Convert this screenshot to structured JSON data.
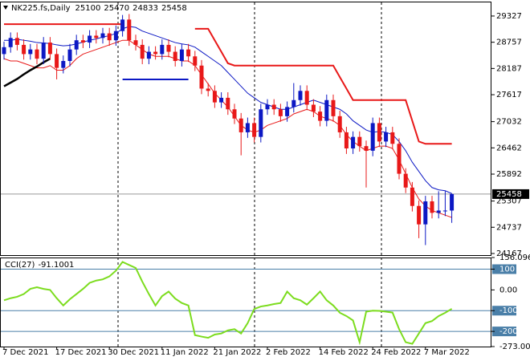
{
  "chart_data": [
    {
      "type": "candlestick",
      "title": "NK225.fs,Daily",
      "categories": [
        "7 Dec 2021",
        null,
        null,
        null,
        null,
        null,
        null,
        null,
        "17 Dec 2021",
        null,
        null,
        null,
        null,
        null,
        null,
        null,
        "30 Dec 2021",
        null,
        null,
        null,
        null,
        null,
        null,
        null,
        "11 Jan 2022",
        null,
        null,
        null,
        null,
        null,
        null,
        null,
        "21 Jan 2022",
        null,
        null,
        null,
        null,
        null,
        null,
        null,
        "2 Feb 2022",
        null,
        null,
        null,
        null,
        null,
        null,
        null,
        "14 Feb 2022",
        null,
        null,
        null,
        null,
        null,
        null,
        null,
        "24 Feb 2022",
        null,
        null,
        null,
        null,
        null,
        null,
        null,
        "7 Mar 2022",
        null,
        null,
        null,
        null
      ],
      "open": [
        28500,
        28650,
        28850,
        28700,
        28500,
        28600,
        28400,
        28750,
        28500,
        28200,
        28350,
        28600,
        28800,
        28750,
        28900,
        28850,
        28950,
        28800,
        29000,
        29250,
        28800,
        28700,
        28400,
        28550,
        28500,
        28700,
        28550,
        28350,
        28600,
        28450,
        28250,
        27750,
        27700,
        27450,
        27550,
        27300,
        27100,
        26800,
        27000,
        26700,
        27300,
        27400,
        27300,
        27150,
        27350,
        27500,
        27700,
        27400,
        27250,
        27050,
        27500,
        27150,
        26800,
        26450,
        26700,
        26500,
        26400,
        27000,
        26600,
        26800,
        26550,
        25900,
        25600,
        25200,
        24800,
        25300,
        25050,
        25100,
        25100
      ],
      "high": [
        28770,
        28970,
        28970,
        28820,
        28720,
        28720,
        28870,
        28870,
        28620,
        28470,
        28720,
        28920,
        28920,
        29020,
        29020,
        29070,
        29070,
        29120,
        29350,
        29370,
        28920,
        28820,
        28670,
        28670,
        28820,
        28820,
        28670,
        28720,
        28720,
        28570,
        28370,
        27870,
        27820,
        27670,
        27670,
        27420,
        27220,
        27120,
        27120,
        27420,
        27520,
        27520,
        27420,
        27470,
        27870,
        27820,
        27820,
        27520,
        27370,
        27620,
        27620,
        27270,
        26920,
        26820,
        26820,
        26620,
        27120,
        27120,
        26920,
        26920,
        26670,
        26020,
        25720,
        25320,
        25420,
        25420,
        25520,
        25520,
        25470
      ],
      "low": [
        28380,
        28530,
        28580,
        28380,
        28380,
        28280,
        28280,
        28380,
        27950,
        28080,
        28230,
        28480,
        28630,
        28630,
        28730,
        28730,
        28680,
        28680,
        28880,
        28680,
        28580,
        28280,
        28280,
        28380,
        28380,
        28430,
        28230,
        28230,
        28330,
        28130,
        27630,
        27580,
        27330,
        27330,
        27180,
        26980,
        26300,
        26680,
        26580,
        26580,
        27180,
        27180,
        27030,
        27030,
        27230,
        27380,
        27280,
        27130,
        26930,
        26930,
        27030,
        26680,
        26330,
        26330,
        26380,
        25600,
        26280,
        26480,
        26480,
        26430,
        25780,
        25480,
        25080,
        24500,
        24350,
        24930,
        24930,
        24980,
        24833
      ],
      "close": [
        28650,
        28850,
        28700,
        28500,
        28600,
        28400,
        28750,
        28500,
        28200,
        28350,
        28600,
        28800,
        28750,
        28900,
        28850,
        28950,
        28800,
        29000,
        29250,
        28800,
        28700,
        28400,
        28550,
        28500,
        28700,
        28550,
        28350,
        28600,
        28450,
        28250,
        27750,
        27700,
        27450,
        27550,
        27300,
        27100,
        26800,
        27000,
        26700,
        27300,
        27400,
        27300,
        27150,
        27350,
        27500,
        27700,
        27400,
        27250,
        27050,
        27500,
        27150,
        26800,
        26450,
        26700,
        26500,
        26400,
        27000,
        26600,
        26800,
        26550,
        25900,
        25600,
        25200,
        24800,
        25300,
        25050,
        25100,
        25100,
        25458
      ],
      "up_color": "#0c18c4",
      "down_color": "#e81818",
      "series": [
        {
          "color": "#0c18c4",
          "width": 1,
          "values": [
            28800,
            28800,
            28820,
            28800,
            28780,
            28750,
            28740,
            28730,
            28700,
            28680,
            28690,
            28720,
            28760,
            28800,
            28830,
            28870,
            28900,
            28950,
            29050,
            29100,
            29080,
            29000,
            28950,
            28900,
            28850,
            28800,
            28750,
            28720,
            28700,
            28650,
            28550,
            28450,
            28350,
            28250,
            28100,
            27950,
            27800,
            27650,
            27550,
            27450,
            27400,
            27350,
            27300,
            27300,
            27350,
            27400,
            27450,
            27500,
            27450,
            27400,
            27350,
            27300,
            27200,
            27050,
            26950,
            26850,
            26800,
            26820,
            26800,
            26750,
            26600,
            26400,
            26150,
            25950,
            25750,
            25600,
            25550,
            25530,
            25470
          ]
        },
        {
          "color": "#e81818",
          "width": 1,
          "values": [
            28400,
            28350,
            28350,
            28300,
            28250,
            28200,
            28200,
            28250,
            28150,
            28150,
            28250,
            28400,
            28500,
            28550,
            28600,
            28650,
            28700,
            28750,
            28800,
            28800,
            28700,
            28600,
            28500,
            28450,
            28450,
            28450,
            28400,
            28350,
            28350,
            28250,
            28050,
            27850,
            27650,
            27500,
            27350,
            27150,
            26950,
            26850,
            26800,
            26850,
            26950,
            27000,
            27050,
            27100,
            27200,
            27250,
            27300,
            27250,
            27150,
            27100,
            27050,
            26950,
            26750,
            26600,
            26500,
            26400,
            26450,
            26500,
            26500,
            26450,
            26200,
            25900,
            25600,
            25350,
            25200,
            25100,
            25050,
            25000,
            24950
          ]
        },
        {
          "color": "#e81818",
          "width": 2,
          "values": [
            29150,
            29150,
            29150,
            29150,
            29150,
            29150,
            29150,
            29150,
            29150,
            29150,
            29150,
            29150,
            29150,
            29150,
            29150,
            29150,
            29150,
            29150,
            29150,
            null,
            null,
            null,
            null,
            null,
            null,
            null,
            null,
            null,
            null,
            29050,
            29050,
            29050,
            28800,
            28550,
            28300,
            28250,
            28250,
            28250,
            28250,
            28250,
            28250,
            28250,
            28250,
            28250,
            28250,
            28250,
            28250,
            28250,
            28250,
            28250,
            28250,
            28000,
            27750,
            27500,
            27500,
            27500,
            27500,
            27500,
            27500,
            27500,
            27500,
            27500,
            27050,
            26600,
            26550,
            26550,
            26550,
            26550,
            26550
          ]
        },
        {
          "color": "#0c18c4",
          "width": 2,
          "values": [
            null,
            null,
            null,
            null,
            null,
            null,
            null,
            null,
            null,
            null,
            null,
            null,
            null,
            null,
            null,
            null,
            null,
            null,
            27950,
            27950,
            27950,
            27950,
            27950,
            27950,
            27950,
            27950,
            27950,
            27950,
            27950,
            null,
            null,
            null,
            null,
            null,
            null,
            null,
            null,
            null,
            null,
            null,
            null,
            null,
            null,
            null,
            null,
            null,
            null,
            null,
            null,
            null,
            null,
            null,
            null,
            null,
            null,
            null,
            null,
            null,
            null,
            null,
            null,
            null,
            null,
            null,
            null,
            null,
            null,
            null,
            null
          ]
        },
        {
          "color": "#000000",
          "width": 2.5,
          "values": [
            27800,
            27880,
            27960,
            28060,
            28150,
            28230,
            28320,
            28400,
            null,
            null,
            null,
            null,
            null,
            null,
            null,
            null,
            null,
            null,
            null,
            null,
            null,
            null,
            null,
            null,
            null,
            null,
            null,
            null,
            null,
            null,
            null,
            null,
            null,
            null,
            null,
            null,
            null,
            null,
            null,
            null,
            null,
            null,
            null,
            null,
            null,
            null,
            null,
            null,
            null,
            null,
            null,
            null,
            null,
            null,
            null,
            null,
            null,
            null,
            null,
            null,
            null,
            null,
            null,
            null,
            null,
            null,
            null,
            null,
            null
          ]
        }
      ],
      "ylim": [
        24132,
        29640
      ],
      "yticks": [
        29327,
        28757,
        28187,
        27617,
        27032,
        26462,
        25892,
        25307,
        24737,
        24167
      ]
    },
    {
      "type": "line",
      "title": "CCI(27)",
      "color": "#7cdc1e",
      "values": [
        -50,
        -40,
        -33,
        -20,
        5,
        13,
        5,
        0,
        -40,
        -75,
        -45,
        -20,
        5,
        34,
        45,
        51,
        65,
        93,
        135,
        120,
        106,
        40,
        -20,
        -75,
        -30,
        -8,
        -42,
        -63,
        -75,
        -218,
        -225,
        -231,
        -215,
        -210,
        -195,
        -189,
        -210,
        -160,
        -92,
        -80,
        -75,
        -68,
        -63,
        -8,
        -40,
        -50,
        -71,
        -40,
        -8,
        -50,
        -75,
        -110,
        -126,
        -147,
        -252,
        -105,
        -100,
        -101,
        -105,
        -109,
        -189,
        -252,
        -260,
        -210,
        -160,
        -150,
        -126,
        -110,
        -91.1001
      ],
      "ylim": [
        -273.0024,
        156.0965
      ],
      "yticks": [
        156.0965,
        100,
        {
          "value": 0,
          "label": "0.00"
        },
        -100,
        -200,
        -273.0024
      ],
      "levels": [
        100,
        -100,
        -200
      ],
      "level_color": "#4a7fa8"
    }
  ]
}
